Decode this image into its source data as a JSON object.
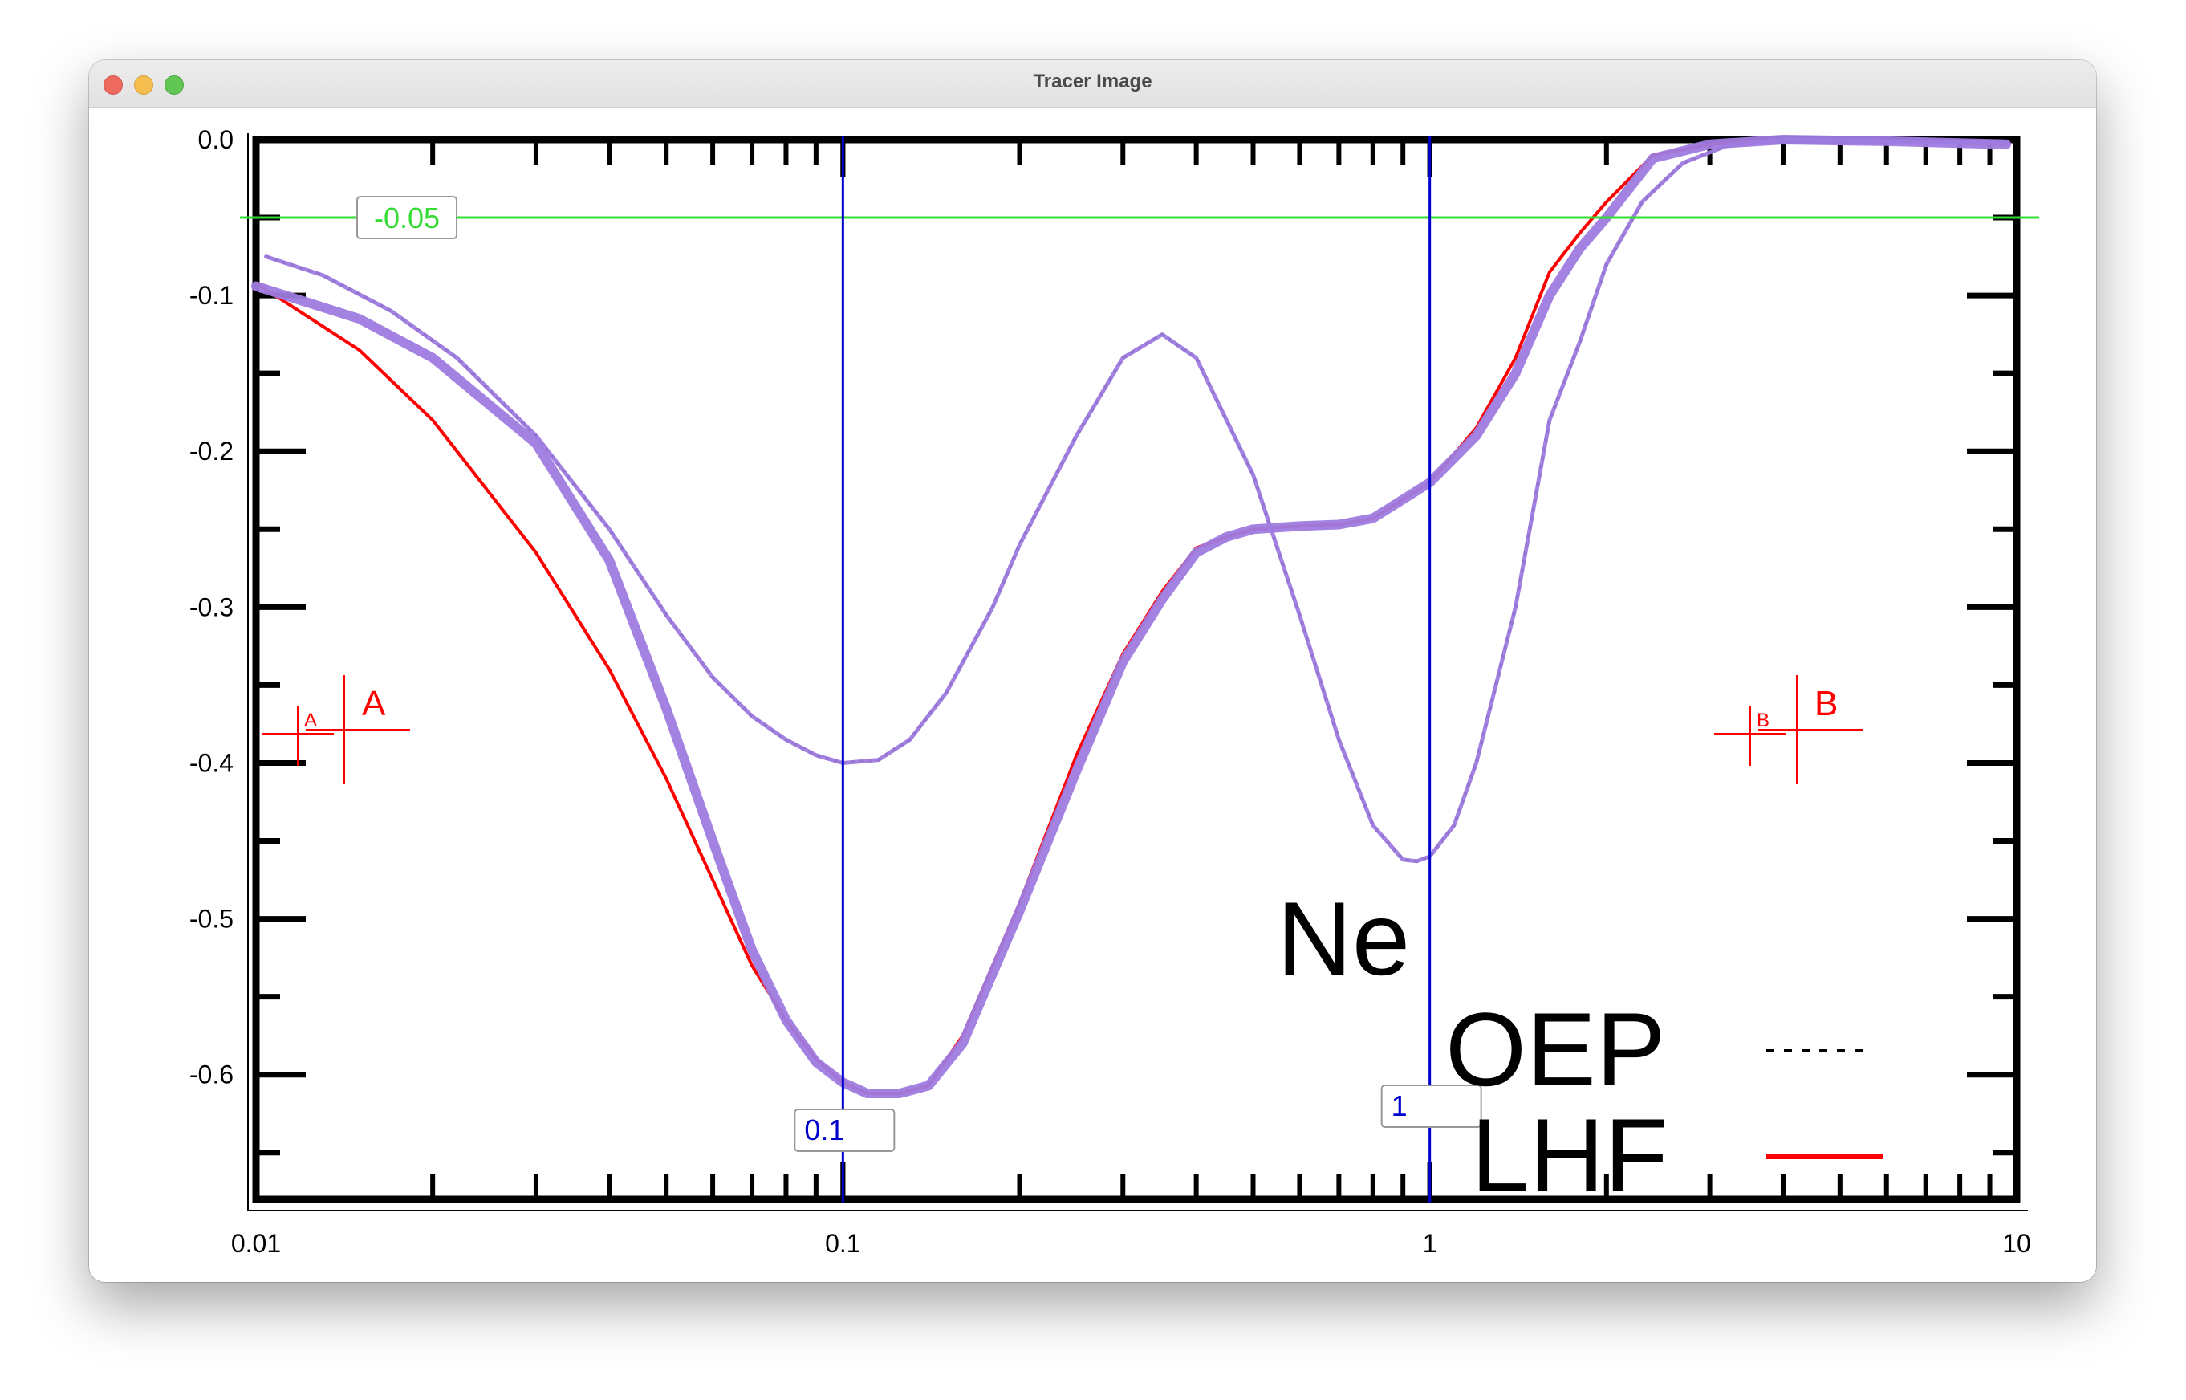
{
  "window": {
    "title": "Tracer Image"
  },
  "chart_data": {
    "type": "line",
    "x_scale": "log",
    "xlim": [
      0.01,
      10
    ],
    "ylim": [
      -0.68,
      0.0
    ],
    "x_ticks": [
      "0.01",
      "0.1",
      "1",
      "10"
    ],
    "y_ticks": [
      "0.0",
      "-0.1",
      "-0.2",
      "-0.3",
      "-0.4",
      "-0.5",
      "-0.6"
    ],
    "annotation": "Ne",
    "legend": [
      "OEP",
      "LHF"
    ],
    "legend_position": "bottom-right",
    "series": [
      {
        "name": "OEP",
        "color": "#000000",
        "style": "dotted",
        "points": [
          [
            0.0104,
            -0.075
          ],
          [
            0.013,
            -0.087
          ],
          [
            0.017,
            -0.11
          ],
          [
            0.022,
            -0.14
          ],
          [
            0.03,
            -0.19
          ],
          [
            0.04,
            -0.25
          ],
          [
            0.05,
            -0.305
          ],
          [
            0.06,
            -0.345
          ],
          [
            0.07,
            -0.37
          ],
          [
            0.08,
            -0.385
          ],
          [
            0.09,
            -0.395
          ],
          [
            0.1,
            -0.4
          ],
          [
            0.115,
            -0.398
          ],
          [
            0.13,
            -0.385
          ],
          [
            0.15,
            -0.355
          ],
          [
            0.18,
            -0.3
          ],
          [
            0.2,
            -0.26
          ],
          [
            0.25,
            -0.19
          ],
          [
            0.3,
            -0.14
          ],
          [
            0.35,
            -0.125
          ],
          [
            0.4,
            -0.14
          ],
          [
            0.5,
            -0.215
          ],
          [
            0.6,
            -0.305
          ],
          [
            0.7,
            -0.385
          ],
          [
            0.8,
            -0.44
          ],
          [
            0.9,
            -0.462
          ],
          [
            0.95,
            -0.463
          ],
          [
            1.0,
            -0.46
          ],
          [
            1.1,
            -0.44
          ],
          [
            1.2,
            -0.4
          ],
          [
            1.4,
            -0.3
          ],
          [
            1.6,
            -0.18
          ],
          [
            1.8,
            -0.13
          ],
          [
            2.0,
            -0.08
          ],
          [
            2.3,
            -0.04
          ],
          [
            2.7,
            -0.015
          ],
          [
            3.2,
            -0.004
          ],
          [
            4.0,
            0.0
          ],
          [
            6.0,
            -0.001
          ],
          [
            9.6,
            -0.002
          ]
        ]
      },
      {
        "name": "LHF",
        "color": "#ff0000",
        "style": "solid",
        "points": [
          [
            0.01,
            -0.092
          ],
          [
            0.015,
            -0.135
          ],
          [
            0.02,
            -0.18
          ],
          [
            0.03,
            -0.265
          ],
          [
            0.04,
            -0.34
          ],
          [
            0.05,
            -0.41
          ],
          [
            0.06,
            -0.475
          ],
          [
            0.07,
            -0.53
          ],
          [
            0.08,
            -0.565
          ],
          [
            0.09,
            -0.59
          ],
          [
            0.1,
            -0.605
          ],
          [
            0.11,
            -0.612
          ],
          [
            0.125,
            -0.612
          ],
          [
            0.14,
            -0.607
          ],
          [
            0.16,
            -0.575
          ],
          [
            0.18,
            -0.53
          ],
          [
            0.2,
            -0.49
          ],
          [
            0.25,
            -0.395
          ],
          [
            0.3,
            -0.33
          ],
          [
            0.35,
            -0.29
          ],
          [
            0.4,
            -0.262
          ],
          [
            0.45,
            -0.255
          ],
          [
            0.5,
            -0.25
          ],
          [
            0.6,
            -0.248
          ],
          [
            0.7,
            -0.247
          ],
          [
            0.8,
            -0.243
          ],
          [
            1.0,
            -0.22
          ],
          [
            1.2,
            -0.185
          ],
          [
            1.4,
            -0.14
          ],
          [
            1.6,
            -0.085
          ],
          [
            1.8,
            -0.06
          ],
          [
            2.0,
            -0.04
          ],
          [
            2.4,
            -0.01
          ],
          [
            3.0,
            -0.003
          ],
          [
            4.0,
            0.0
          ],
          [
            6.0,
            -0.001
          ],
          [
            9.6,
            -0.003
          ]
        ]
      }
    ],
    "traces": [
      {
        "id": "trace-oep",
        "color": "#9e7be0",
        "points": [
          [
            0.0104,
            -0.075
          ],
          [
            0.013,
            -0.087
          ],
          [
            0.017,
            -0.11
          ],
          [
            0.022,
            -0.14
          ],
          [
            0.03,
            -0.19
          ],
          [
            0.04,
            -0.25
          ],
          [
            0.05,
            -0.305
          ],
          [
            0.06,
            -0.345
          ],
          [
            0.07,
            -0.37
          ],
          [
            0.08,
            -0.385
          ],
          [
            0.09,
            -0.395
          ],
          [
            0.1,
            -0.4
          ],
          [
            0.115,
            -0.398
          ],
          [
            0.13,
            -0.385
          ],
          [
            0.15,
            -0.355
          ],
          [
            0.18,
            -0.3
          ],
          [
            0.2,
            -0.26
          ],
          [
            0.25,
            -0.19
          ],
          [
            0.3,
            -0.14
          ],
          [
            0.35,
            -0.125
          ],
          [
            0.4,
            -0.14
          ],
          [
            0.5,
            -0.215
          ],
          [
            0.6,
            -0.305
          ],
          [
            0.7,
            -0.385
          ],
          [
            0.8,
            -0.44
          ],
          [
            0.9,
            -0.462
          ],
          [
            0.95,
            -0.463
          ],
          [
            1.0,
            -0.46
          ],
          [
            1.1,
            -0.44
          ],
          [
            1.2,
            -0.4
          ],
          [
            1.4,
            -0.3
          ],
          [
            1.6,
            -0.18
          ],
          [
            1.8,
            -0.13
          ],
          [
            2.0,
            -0.08
          ],
          [
            2.3,
            -0.04
          ],
          [
            2.7,
            -0.015
          ],
          [
            3.2,
            -0.004
          ],
          [
            4.0,
            0.0
          ],
          [
            6.0,
            -0.001
          ],
          [
            9.6,
            -0.002
          ]
        ]
      },
      {
        "id": "trace-lhf",
        "color": "#9e7be0",
        "points": [
          [
            0.01,
            -0.094
          ],
          [
            0.015,
            -0.115
          ],
          [
            0.02,
            -0.14
          ],
          [
            0.03,
            -0.195
          ],
          [
            0.04,
            -0.27
          ],
          [
            0.05,
            -0.365
          ],
          [
            0.06,
            -0.45
          ],
          [
            0.07,
            -0.52
          ],
          [
            0.08,
            -0.565
          ],
          [
            0.09,
            -0.592
          ],
          [
            0.1,
            -0.605
          ],
          [
            0.11,
            -0.612
          ],
          [
            0.125,
            -0.612
          ],
          [
            0.14,
            -0.607
          ],
          [
            0.16,
            -0.58
          ],
          [
            0.18,
            -0.535
          ],
          [
            0.2,
            -0.495
          ],
          [
            0.25,
            -0.405
          ],
          [
            0.3,
            -0.335
          ],
          [
            0.35,
            -0.295
          ],
          [
            0.4,
            -0.265
          ],
          [
            0.45,
            -0.255
          ],
          [
            0.5,
            -0.25
          ],
          [
            0.6,
            -0.248
          ],
          [
            0.7,
            -0.247
          ],
          [
            0.8,
            -0.243
          ],
          [
            1.0,
            -0.22
          ],
          [
            1.2,
            -0.19
          ],
          [
            1.4,
            -0.15
          ],
          [
            1.6,
            -0.1
          ],
          [
            1.8,
            -0.07
          ],
          [
            2.0,
            -0.05
          ],
          [
            2.4,
            -0.012
          ],
          [
            3.0,
            -0.003
          ],
          [
            4.0,
            0.0
          ],
          [
            6.0,
            -0.001
          ],
          [
            9.6,
            -0.003
          ]
        ]
      }
    ],
    "reference_lines": {
      "horizontal": {
        "value": -0.05,
        "label": "-0.05",
        "color": "#33dd33"
      },
      "vertical": [
        {
          "value": 0.1,
          "label": "0.1",
          "color": "#0000cc"
        },
        {
          "value": 1,
          "label": "1",
          "color": "#0000cc"
        }
      ]
    },
    "calibration_markers": [
      {
        "label": "A",
        "small_label": "A",
        "color": "#ff0000"
      },
      {
        "label": "B",
        "small_label": "B",
        "color": "#ff0000"
      }
    ]
  }
}
